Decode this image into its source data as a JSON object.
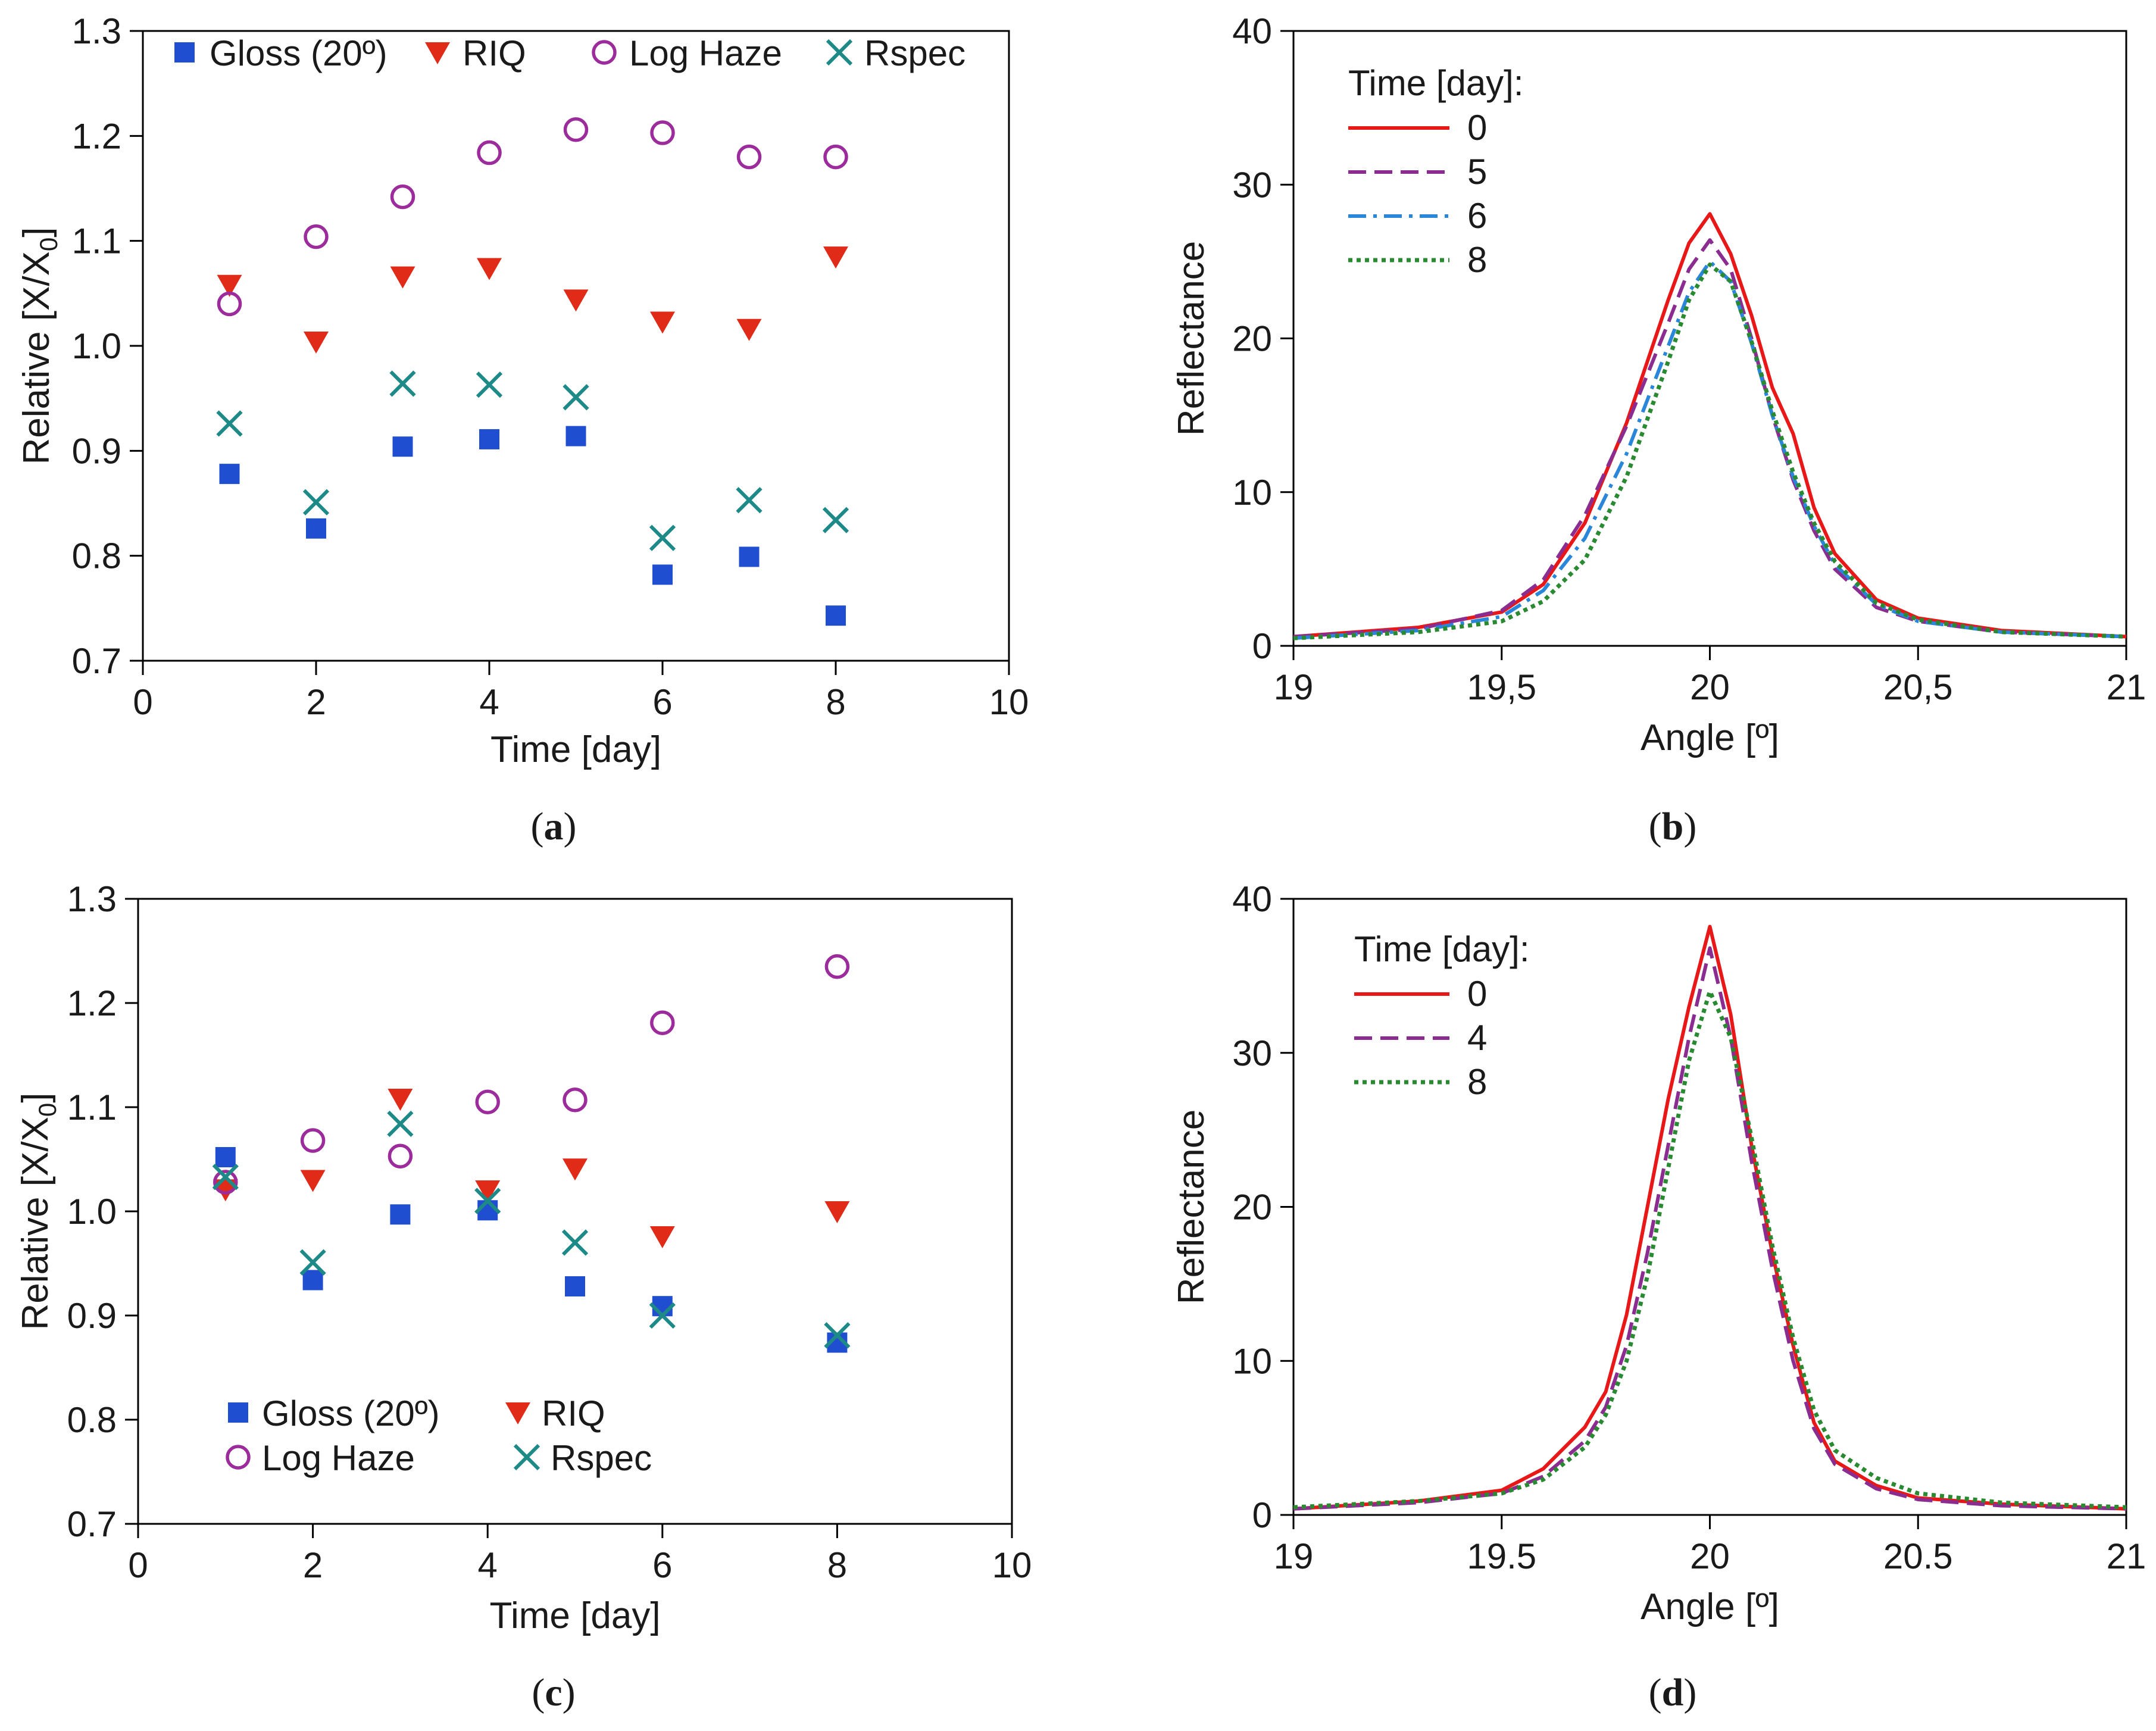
{
  "figure": {
    "background": "#ffffff"
  },
  "colors": {
    "gloss": "#1f4fd0",
    "riq": "#e02b18",
    "loghaze": "#9c2b9c",
    "rspec": "#1e8a88",
    "day0": "#e81818",
    "day4": "#8a2c90",
    "day5": "#8a2c90",
    "day6": "#2a86d8",
    "day8": "#2a8a32"
  },
  "chart_data": [
    {
      "id": "a",
      "caption_open": "(",
      "caption_letter": "a",
      "caption_close": ")",
      "type": "scatter",
      "xlabel": "Time [day]",
      "ylabel_main": "Relative [X/X",
      "ylabel_sub": "0",
      "ylabel_end": "]",
      "xlim": [
        0,
        10
      ],
      "ylim": [
        0.7,
        1.3
      ],
      "xticks": [
        0,
        2,
        4,
        6,
        8,
        10
      ],
      "yticks": [
        0.7,
        0.8,
        0.9,
        1.0,
        1.1,
        1.2,
        1.3
      ],
      "xtick_labels": [
        "0",
        "2",
        "4",
        "6",
        "8",
        "10"
      ],
      "ytick_labels": [
        "0.7",
        "0.8",
        "0.9",
        "1.0",
        "1.1",
        "1.2",
        "1.3"
      ],
      "legend_position": "top",
      "series": [
        {
          "name": "Gloss (20º)",
          "marker": "square",
          "color_key": "gloss",
          "x": [
            1,
            2,
            3,
            4,
            5,
            6,
            7,
            8
          ],
          "y": [
            0.878,
            0.826,
            0.904,
            0.911,
            0.914,
            0.782,
            0.799,
            0.743
          ]
        },
        {
          "name": "RIQ",
          "marker": "triangle-down",
          "color_key": "riq",
          "x": [
            1,
            2,
            3,
            4,
            5,
            6,
            7,
            8
          ],
          "y": [
            1.058,
            1.004,
            1.066,
            1.074,
            1.044,
            1.023,
            1.016,
            1.085
          ]
        },
        {
          "name": "Log Haze",
          "marker": "circle",
          "color_key": "loghaze",
          "x": [
            1,
            2,
            3,
            4,
            5,
            6,
            7,
            8
          ],
          "y": [
            1.04,
            1.104,
            1.142,
            1.184,
            1.206,
            1.203,
            1.18,
            1.18
          ]
        },
        {
          "name": "Rspec",
          "marker": "x",
          "color_key": "rspec",
          "x": [
            1,
            2,
            3,
            4,
            5,
            6,
            7,
            8
          ],
          "y": [
            0.926,
            0.851,
            0.964,
            0.963,
            0.951,
            0.817,
            0.853,
            0.834
          ]
        }
      ]
    },
    {
      "id": "b",
      "caption_open": "(",
      "caption_letter": "b",
      "caption_close": ")",
      "type": "line",
      "xlabel": "Angle [º]",
      "ylabel": "Reflectance",
      "xlim": [
        19,
        21
      ],
      "ylim": [
        0,
        40
      ],
      "xticks": [
        19,
        19.5,
        20,
        20.5,
        21
      ],
      "yticks": [
        0,
        10,
        20,
        30,
        40
      ],
      "xtick_labels": [
        "19",
        "19,5",
        "20",
        "20,5",
        "21"
      ],
      "ytick_labels": [
        "0",
        "10",
        "20",
        "30",
        "40"
      ],
      "legend_title": "Time [day]:",
      "legend_position": "top-left",
      "series": [
        {
          "name": "0",
          "dash": "solid",
          "color_key": "day0",
          "x": [
            19,
            19.3,
            19.5,
            19.6,
            19.7,
            19.8,
            19.9,
            19.95,
            20,
            20.05,
            20.1,
            20.15,
            20.2,
            20.25,
            20.3,
            20.4,
            20.5,
            20.7,
            21
          ],
          "y": [
            0.6,
            1.2,
            2.2,
            4.0,
            8.0,
            14.5,
            22.5,
            26.2,
            28.1,
            25.5,
            21.5,
            16.8,
            13.8,
            9.0,
            6.0,
            3.0,
            1.8,
            1.0,
            0.6
          ]
        },
        {
          "name": "5",
          "dash": "dash",
          "color_key": "day5",
          "x": [
            19,
            19.3,
            19.5,
            19.6,
            19.7,
            19.8,
            19.9,
            19.95,
            20,
            20.05,
            20.1,
            20.15,
            20.2,
            20.25,
            20.3,
            20.4,
            20.5,
            20.7,
            21
          ],
          "y": [
            0.6,
            1.1,
            2.3,
            4.3,
            8.5,
            14.3,
            21.0,
            24.5,
            26.4,
            24.5,
            20.0,
            15.0,
            10.8,
            7.5,
            5.0,
            2.5,
            1.6,
            0.9,
            0.6
          ]
        },
        {
          "name": "6",
          "dash": "dashdot",
          "color_key": "day6",
          "x": [
            19,
            19.3,
            19.5,
            19.6,
            19.7,
            19.8,
            19.9,
            19.95,
            20,
            20.05,
            20.1,
            20.15,
            20.2,
            20.25,
            20.3,
            20.4,
            20.5,
            20.7,
            21
          ],
          "y": [
            0.5,
            1.0,
            1.9,
            3.6,
            7.0,
            12.5,
            19.5,
            23.0,
            25.0,
            23.7,
            19.7,
            15.0,
            11.0,
            7.8,
            5.3,
            2.7,
            1.6,
            0.9,
            0.6
          ]
        },
        {
          "name": "8",
          "dash": "dot",
          "color_key": "day8",
          "x": [
            19,
            19.3,
            19.5,
            19.6,
            19.7,
            19.8,
            19.9,
            19.95,
            20,
            20.05,
            20.1,
            20.15,
            20.2,
            20.25,
            20.3,
            20.4,
            20.5,
            20.7,
            21
          ],
          "y": [
            0.5,
            0.9,
            1.6,
            2.9,
            5.6,
            11.0,
            18.5,
            22.5,
            24.8,
            23.7,
            19.8,
            15.3,
            11.3,
            8.0,
            5.5,
            2.8,
            1.7,
            0.9,
            0.6
          ]
        }
      ]
    },
    {
      "id": "c",
      "caption_open": "(",
      "caption_letter": "c",
      "caption_close": ")",
      "type": "scatter",
      "xlabel": "Time [day]",
      "ylabel_main": "Relative [X/X",
      "ylabel_sub": "0",
      "ylabel_end": "]",
      "xlim": [
        0,
        10
      ],
      "ylim": [
        0.7,
        1.3
      ],
      "xticks": [
        0,
        2,
        4,
        6,
        8,
        10
      ],
      "yticks": [
        0.7,
        0.8,
        0.9,
        1.0,
        1.1,
        1.2,
        1.3
      ],
      "xtick_labels": [
        "0",
        "2",
        "4",
        "6",
        "8",
        "10"
      ],
      "ytick_labels": [
        "0.7",
        "0.8",
        "0.9",
        "1.0",
        "1.1",
        "1.2",
        "1.3"
      ],
      "legend_position": "bottom-left",
      "series": [
        {
          "name": "Gloss (20º)",
          "marker": "square",
          "color_key": "gloss",
          "x": [
            1,
            2,
            3,
            4,
            5,
            6,
            8
          ],
          "y": [
            1.052,
            0.934,
            0.997,
            1.001,
            0.928,
            0.909,
            0.874
          ]
        },
        {
          "name": "RIQ",
          "marker": "triangle-down",
          "color_key": "riq",
          "x": [
            1,
            2,
            3,
            4,
            5,
            6,
            8
          ],
          "y": [
            1.021,
            1.03,
            1.108,
            1.02,
            1.041,
            0.976,
            1.0
          ]
        },
        {
          "name": "Log Haze",
          "marker": "circle",
          "color_key": "loghaze",
          "x": [
            1,
            2,
            3,
            4,
            5,
            6,
            8
          ],
          "y": [
            1.028,
            1.068,
            1.053,
            1.105,
            1.107,
            1.181,
            1.235
          ]
        },
        {
          "name": "Rspec",
          "marker": "x",
          "color_key": "rspec",
          "x": [
            1,
            2,
            3,
            4,
            5,
            6,
            8
          ],
          "y": [
            1.033,
            0.951,
            1.084,
            1.01,
            0.97,
            0.9,
            0.881
          ]
        }
      ]
    },
    {
      "id": "d",
      "caption_open": "(",
      "caption_letter": "d",
      "caption_close": ")",
      "type": "line",
      "xlabel": "Angle [º]",
      "ylabel": "Reflectance",
      "xlim": [
        19,
        21
      ],
      "ylim": [
        0,
        40
      ],
      "xticks": [
        19,
        19.5,
        20,
        20.5,
        21
      ],
      "yticks": [
        0,
        10,
        20,
        30,
        40
      ],
      "xtick_labels": [
        "19",
        "19.5",
        "20",
        "20.5",
        "21"
      ],
      "ytick_labels": [
        "0",
        "10",
        "20",
        "30",
        "40"
      ],
      "legend_title": "Time [day]:",
      "legend_position": "top-left",
      "series": [
        {
          "name": "0",
          "dash": "solid",
          "color_key": "day0",
          "x": [
            19,
            19.3,
            19.5,
            19.6,
            19.7,
            19.75,
            19.8,
            19.85,
            19.9,
            19.95,
            20,
            20.05,
            20.1,
            20.15,
            20.2,
            20.25,
            20.3,
            20.4,
            20.5,
            20.7,
            21
          ],
          "y": [
            0.4,
            0.9,
            1.6,
            3.0,
            5.7,
            8.0,
            13.0,
            20.0,
            27.0,
            33.0,
            38.2,
            32.5,
            24.0,
            17.0,
            11.0,
            6.0,
            3.5,
            1.9,
            1.1,
            0.7,
            0.4
          ]
        },
        {
          "name": "4",
          "dash": "dash",
          "color_key": "day4",
          "x": [
            19,
            19.3,
            19.5,
            19.6,
            19.7,
            19.75,
            19.8,
            19.85,
            19.9,
            19.95,
            20,
            20.05,
            20.1,
            20.15,
            20.2,
            20.25,
            20.3,
            20.4,
            20.5,
            20.7,
            21
          ],
          "y": [
            0.4,
            0.8,
            1.4,
            2.5,
            4.8,
            7.0,
            11.0,
            17.0,
            24.0,
            31.0,
            36.8,
            31.0,
            23.0,
            16.0,
            10.0,
            5.6,
            3.3,
            1.7,
            1.0,
            0.6,
            0.4
          ]
        },
        {
          "name": "8",
          "dash": "dot",
          "color_key": "day8",
          "x": [
            19,
            19.3,
            19.5,
            19.6,
            19.7,
            19.75,
            19.8,
            19.85,
            19.9,
            19.95,
            20,
            20.05,
            20.1,
            20.15,
            20.2,
            20.25,
            20.3,
            20.4,
            20.5,
            20.7,
            21
          ],
          "y": [
            0.5,
            0.9,
            1.4,
            2.3,
            4.4,
            6.5,
            10.0,
            15.5,
            22.5,
            29.5,
            34.0,
            31.0,
            24.5,
            17.5,
            11.5,
            6.8,
            4.2,
            2.4,
            1.4,
            0.8,
            0.5
          ]
        }
      ]
    }
  ]
}
